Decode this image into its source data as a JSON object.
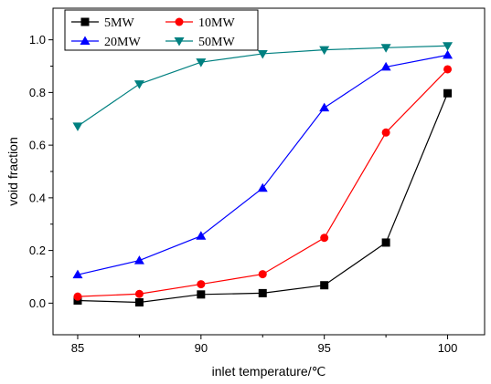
{
  "chart_data": {
    "type": "line",
    "xlabel": "inlet temperature/℃",
    "ylabel": "void fraction",
    "xlim": [
      84,
      101.5
    ],
    "ylim": [
      -0.12,
      1.12
    ],
    "x_ticks": [
      85,
      90,
      95,
      100
    ],
    "x_tick_labels": [
      "85",
      "90",
      "95",
      "100"
    ],
    "y_ticks": [
      0.0,
      0.2,
      0.4,
      0.6,
      0.8,
      1.0
    ],
    "y_tick_labels": [
      "0.0",
      "0.2",
      "0.4",
      "0.6",
      "0.8",
      "1.0"
    ],
    "x_minor_ticks": [
      87.5,
      92.5,
      97.5
    ],
    "y_minor_ticks": [
      0.1,
      0.3,
      0.5,
      0.7,
      0.9
    ],
    "grid": false,
    "legend_position": "top-left",
    "x": [
      85,
      87.5,
      90,
      92.5,
      95,
      97.5,
      100
    ],
    "series": [
      {
        "name": "5MW",
        "color": "#000000",
        "marker": "square",
        "values": [
          0.01,
          0.003,
          0.033,
          0.038,
          0.068,
          0.23,
          0.797
        ]
      },
      {
        "name": "10MW",
        "color": "#ff0000",
        "marker": "circle",
        "values": [
          0.025,
          0.035,
          0.072,
          0.11,
          0.248,
          0.648,
          0.888
        ]
      },
      {
        "name": "20MW",
        "color": "#0000ff",
        "marker": "triangle-up",
        "values": [
          0.108,
          0.162,
          0.255,
          0.437,
          0.742,
          0.897,
          0.942
        ]
      },
      {
        "name": "50MW",
        "color": "#008080",
        "marker": "triangle-down",
        "values": [
          0.672,
          0.832,
          0.915,
          0.947,
          0.962,
          0.97,
          0.977
        ]
      }
    ]
  }
}
